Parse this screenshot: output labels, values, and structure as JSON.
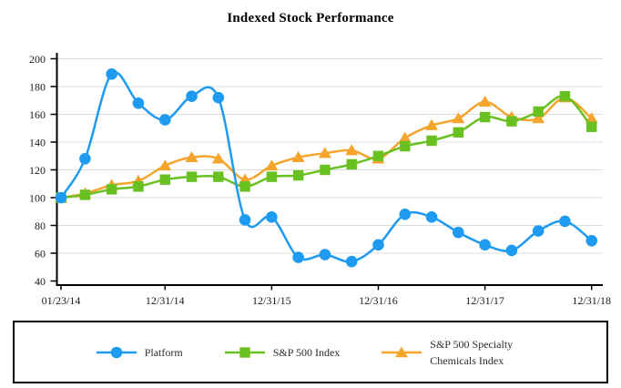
{
  "title": "Indexed Stock Performance",
  "chart_data": {
    "type": "line",
    "x": [
      "01/23/14",
      "03/31/14",
      "06/30/14",
      "09/30/14",
      "12/31/14",
      "03/31/15",
      "06/30/15",
      "09/30/15",
      "12/31/15",
      "03/31/16",
      "06/30/16",
      "09/30/16",
      "12/31/16",
      "03/31/17",
      "06/30/17",
      "09/30/17",
      "12/31/17",
      "03/31/18",
      "06/30/18",
      "09/30/18",
      "12/31/18"
    ],
    "series": [
      {
        "name": "Platform",
        "marker": "circle",
        "color": "#1E9BF0",
        "values": [
          100,
          128,
          189,
          168,
          156,
          173,
          172,
          84,
          86,
          57,
          59,
          54,
          66,
          88,
          86,
          75,
          66,
          62,
          76,
          83,
          69
        ]
      },
      {
        "name": "S&P 500 Index",
        "marker": "square",
        "color": "#69C121",
        "values": [
          100,
          102,
          106,
          108,
          113,
          115,
          115,
          108,
          115,
          116,
          120,
          124,
          130,
          137,
          141,
          147,
          158,
          155,
          162,
          173,
          151
        ]
      },
      {
        "name": "S&P 500 Specialty Chemicals Index",
        "marker": "triangle",
        "color": "#F5A42C",
        "values": [
          100,
          103,
          109,
          112,
          123,
          129,
          128,
          113,
          123,
          129,
          132,
          134,
          128,
          143,
          152,
          157,
          169,
          158,
          157,
          172,
          157
        ]
      }
    ],
    "ylim": [
      40,
      200
    ],
    "ytick_values": [
      200,
      180,
      160,
      140,
      120,
      100,
      80,
      60,
      40
    ],
    "xtick_labels": [
      "01/23/14",
      "12/31/14",
      "12/31/15",
      "12/31/16",
      "12/31/17",
      "12/31/18"
    ],
    "grid": true,
    "legend_position": "bottom"
  },
  "legend": {
    "items": [
      {
        "label": "Platform"
      },
      {
        "label": "S&P 500 Index"
      },
      {
        "label": "S&P 500 Specialty Chemicals Index"
      }
    ]
  },
  "colors": {
    "platform": "#1E9BF0",
    "sp500": "#69C121",
    "specialty": "#F5A42C",
    "gridline": "#DCDCDC",
    "axis": "#000000"
  }
}
